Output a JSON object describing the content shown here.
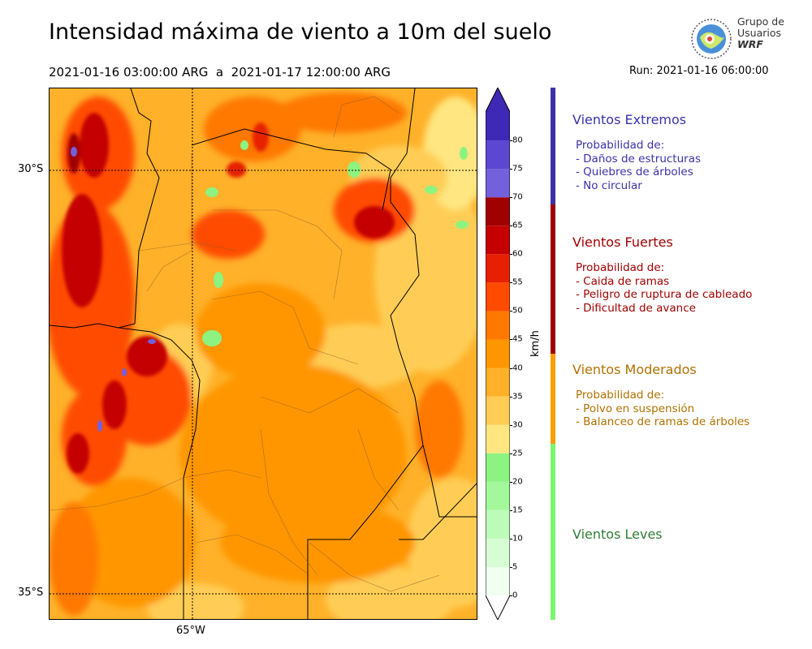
{
  "header": {
    "title": "Intensidad máxima de viento a 10m del suelo",
    "period": "2021-01-16 03:00:00 ARG  a  2021-01-17 12:00:00 ARG",
    "run": "Run: 2021-01-16 06:00:00"
  },
  "logo": {
    "line1": "Grupo de",
    "line2": "Usuarios",
    "line3": "WRF"
  },
  "map": {
    "lat_labels": [
      "30°S",
      "35°S"
    ],
    "lon_labels": [
      "65°W"
    ],
    "gridline_style": "dotted"
  },
  "colorbar": {
    "unit": "km/h",
    "ticks": [
      "0",
      "5",
      "10",
      "15",
      "20",
      "25",
      "30",
      "35",
      "40",
      "45",
      "50",
      "55",
      "60",
      "65",
      "70",
      "75",
      "80"
    ],
    "colors": [
      "#f1fff1",
      "#d7fdd5",
      "#bdfbb9",
      "#a4f89c",
      "#8cf380",
      "#ffe680",
      "#ffcd55",
      "#ffb129",
      "#ff9600",
      "#ff7800",
      "#ff4b00",
      "#e62000",
      "#c40000",
      "#a00000",
      "#7360dc",
      "#5c47d0",
      "#3e29b6"
    ],
    "under_color": "#ffffff",
    "over_color": "#3e29b6"
  },
  "categories": [
    {
      "title": "Vientos Extremos",
      "color": "#3d31a9",
      "text_color": "#3d31a9",
      "lines": [
        "Probabilidad de:",
        "- Daños de estructuras",
        "- Quiebres de árboles",
        "- No circular"
      ]
    },
    {
      "title": "Vientos Fuertes",
      "color": "#a00000",
      "text_color": "#a00000",
      "lines": [
        "Probabilidad de:",
        "- Caida de ramas",
        "- Peligro de ruptura de cableado",
        "- Dificultad de avance"
      ]
    },
    {
      "title": "Vientos Moderados",
      "color": "#ff9d00",
      "text_color": "#b07000",
      "lines": [
        "Probabilidad de:",
        "- Polvo en suspensión",
        "- Balanceo de ramas de árboles"
      ]
    },
    {
      "title": "Vientos Leves",
      "color": "#7cf56e",
      "text_color": "#2e7d32",
      "lines": []
    }
  ]
}
